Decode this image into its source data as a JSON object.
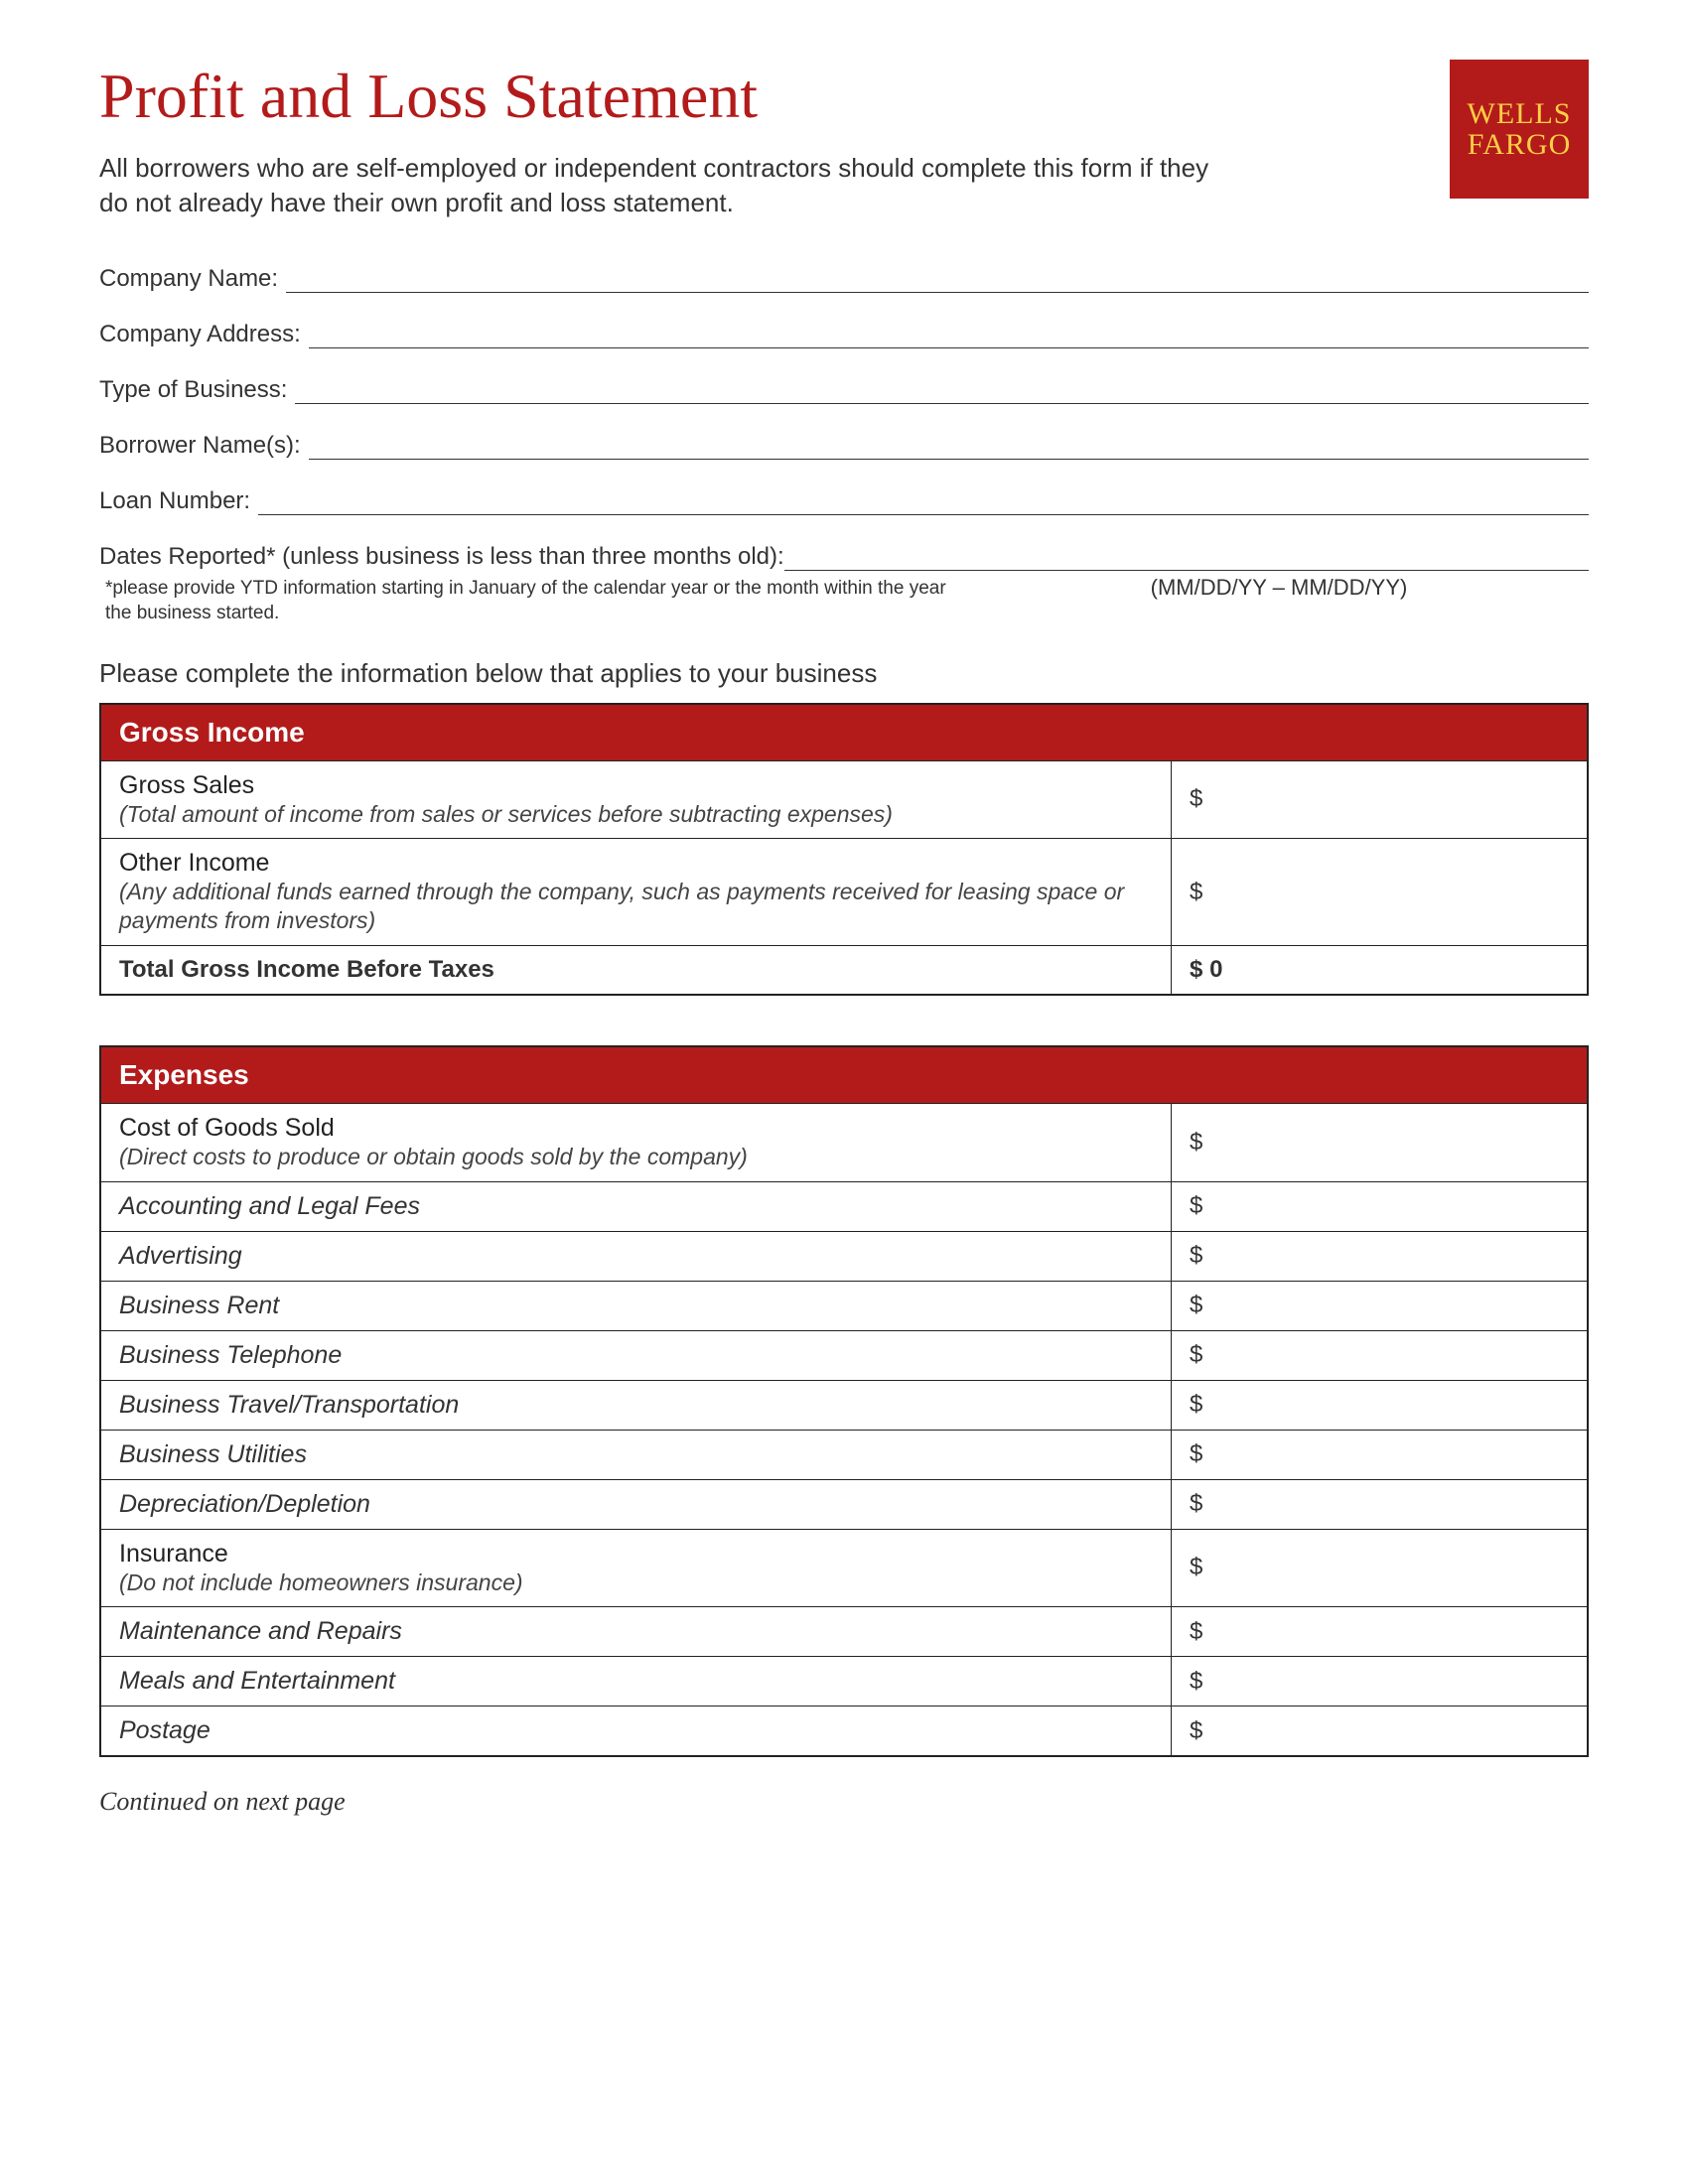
{
  "colors": {
    "brand_red": "#b31b1b",
    "brand_gold": "#ffcf44",
    "text": "#333333",
    "border": "#222222",
    "background": "#ffffff"
  },
  "header": {
    "title": "Profit and Loss Statement",
    "logo_line1": "WELLS",
    "logo_line2": "FARGO",
    "intro": "All borrowers who are self-employed or independent contractors should complete this form if they do not already have their own profit and loss statement."
  },
  "fields": {
    "company_name": {
      "label": "Company Name:"
    },
    "company_address": {
      "label": "Company Address:"
    },
    "type_of_business": {
      "label": "Type of Business:"
    },
    "borrower_names": {
      "label": "Borrower Name(s):"
    },
    "loan_number": {
      "label": "Loan Number:"
    },
    "dates_reported": {
      "label": "Dates Reported* (unless business is less than three months old):",
      "hint": "(MM/DD/YY – MM/DD/YY)",
      "footnote": "*please provide YTD information starting in January of the calendar year or the month within the year the business started."
    }
  },
  "section_intro": "Please complete the information below that applies to your business",
  "gross_income": {
    "header": "Gross Income",
    "rows": [
      {
        "title": "Gross Sales",
        "desc": "(Total amount of income from sales or services before subtracting expenses)",
        "prefix": "$"
      },
      {
        "title": "Other Income",
        "desc": "(Any additional funds earned through the company, such as payments received for leasing space or payments from investors)",
        "prefix": "$"
      }
    ],
    "total": {
      "label": "Total Gross Income Before Taxes",
      "prefix": "$",
      "value": "0"
    }
  },
  "expenses": {
    "header": "Expenses",
    "rows": [
      {
        "title": "Cost of Goods Sold",
        "desc": "(Direct costs to produce or obtain goods sold by the company)",
        "prefix": "$"
      },
      {
        "title": "Accounting and Legal Fees",
        "italic": true,
        "prefix": "$"
      },
      {
        "title": "Advertising",
        "italic": true,
        "prefix": "$"
      },
      {
        "title": "Business Rent",
        "italic": true,
        "prefix": "$"
      },
      {
        "title": "Business Telephone",
        "italic": true,
        "prefix": "$"
      },
      {
        "title": "Business Travel/Transportation",
        "italic": true,
        "prefix": "$"
      },
      {
        "title": "Business Utilities",
        "italic": true,
        "prefix": "$"
      },
      {
        "title": "Depreciation/Depletion",
        "italic": true,
        "prefix": "$"
      },
      {
        "title": "Insurance",
        "desc": "(Do not include homeowners insurance)",
        "prefix": "$"
      },
      {
        "title": "Maintenance and Repairs",
        "italic": true,
        "prefix": "$"
      },
      {
        "title": "Meals and Entertainment",
        "italic": true,
        "prefix": "$"
      },
      {
        "title": "Postage",
        "italic": true,
        "prefix": "$"
      }
    ]
  },
  "continued": "Continued on next page"
}
